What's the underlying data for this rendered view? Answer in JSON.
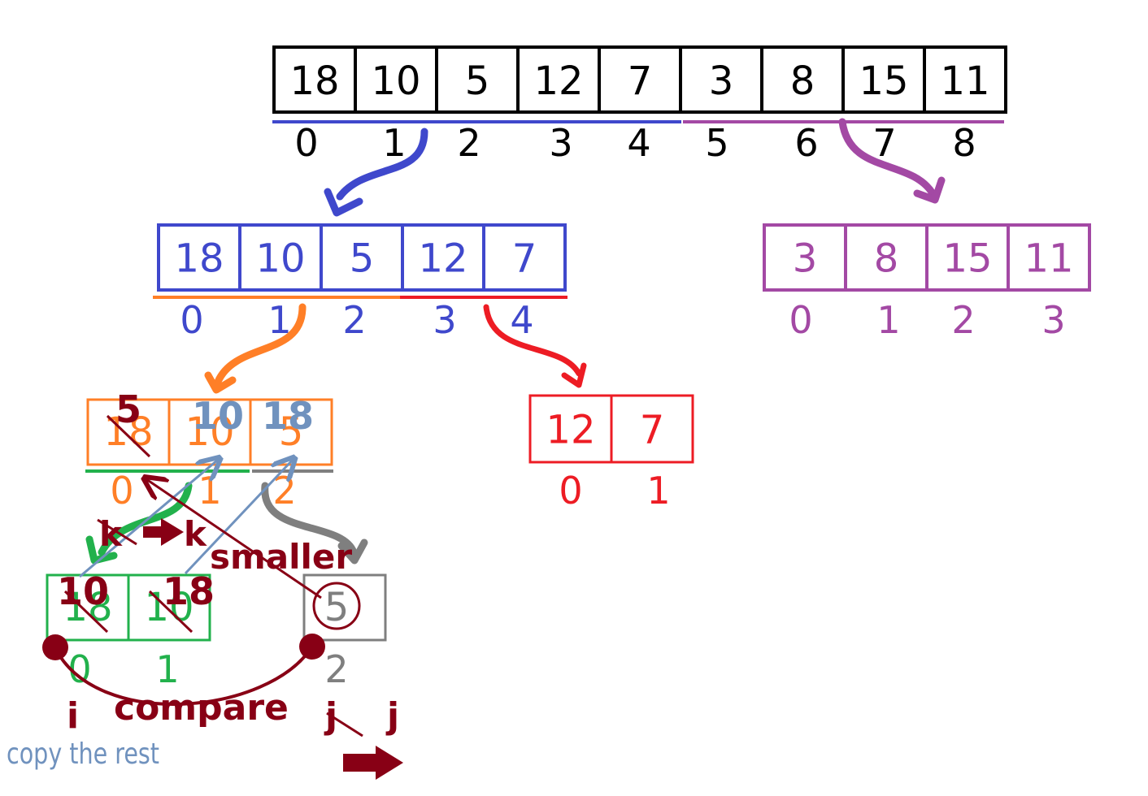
{
  "colors": {
    "black": "#000000",
    "blue": "#3f48cc",
    "purple": "#a349a4",
    "orange": "#ff7f27",
    "red": "#ed1c24",
    "green": "#22b14c",
    "gray": "#7f7f7f",
    "steel": "#7092be",
    "maroon": "#880015"
  },
  "top_array": {
    "values": [
      "18",
      "10",
      "5",
      "12",
      "7",
      "3",
      "8",
      "15",
      "11"
    ],
    "indices": [
      "0",
      "1",
      "2",
      "3",
      "4",
      "5",
      "6",
      "7",
      "8"
    ]
  },
  "left_half": {
    "values": [
      "18",
      "10",
      "5",
      "12",
      "7"
    ],
    "indices": [
      "0",
      "1",
      "2",
      "3",
      "4"
    ]
  },
  "right_half": {
    "values": [
      "3",
      "8",
      "15",
      "11"
    ],
    "indices": [
      "0",
      "1",
      "2",
      "3"
    ]
  },
  "left_left": {
    "values": [
      "18",
      "10",
      "5"
    ],
    "merged_values": [
      "5",
      "10",
      "18"
    ],
    "indices": [
      "0",
      "1",
      "2"
    ]
  },
  "left_right": {
    "values": [
      "12",
      "7"
    ],
    "indices": [
      "0",
      "1"
    ]
  },
  "green_sub": {
    "values": [
      "18",
      "10"
    ],
    "sorted_values": [
      "10",
      "18"
    ],
    "indices": [
      "0",
      "1"
    ]
  },
  "gray_sub": {
    "values": [
      "5"
    ],
    "indices": [
      "2"
    ]
  },
  "annotations": {
    "k_old": "k",
    "k_new": "k",
    "smaller": "smaller",
    "compare": "compare",
    "i": "i",
    "j_old": "j",
    "j_new": "j",
    "copy_rest": "copy the rest"
  }
}
